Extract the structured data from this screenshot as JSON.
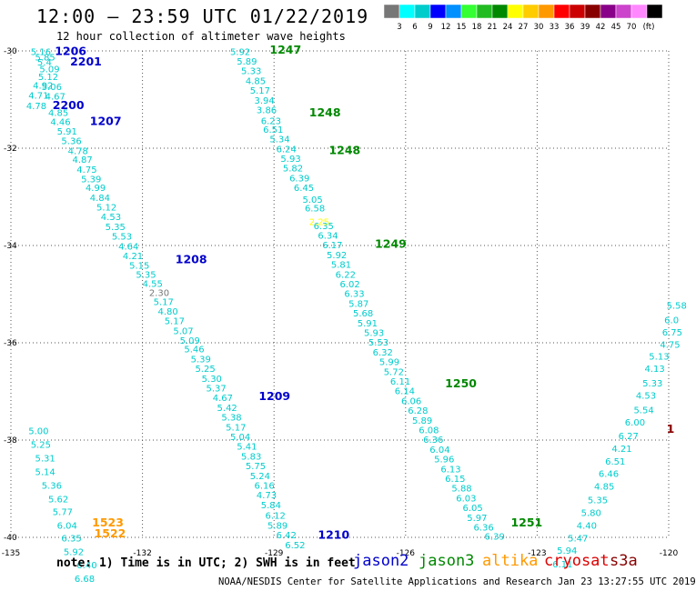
{
  "header": {
    "title": "12:00 – 23:59 UTC 01/22/2019",
    "subtitle": "12 hour collection of altimeter wave heights"
  },
  "colorbar": {
    "colors": [
      "#777777",
      "#00ffff",
      "#00cccc",
      "#0000ff",
      "#0090ff",
      "#33ff33",
      "#22bb22",
      "#008800",
      "#ffff00",
      "#ffcc00",
      "#ff9900",
      "#ff0000",
      "#cc0000",
      "#880000",
      "#880088",
      "#cc44cc",
      "#ff88ff",
      "#000000"
    ],
    "labels": [
      "3",
      "6",
      "9",
      "12",
      "15",
      "18",
      "21",
      "24",
      "27",
      "30",
      "33",
      "36",
      "39",
      "42",
      "45",
      "70"
    ],
    "unit": "(ft)"
  },
  "footer": {
    "note": "note: 1) Time is in UTC; 2) SWH is in feet",
    "credit": "NOAA/NESDIS Center for Satellite Applications and Research   Jan 23 13:27:55 UTC 2019",
    "satellites": [
      {
        "name": "jason2",
        "color": "#0000cc"
      },
      {
        "name": "jason3",
        "color": "#008800"
      },
      {
        "name": "altika",
        "color": "#ff9900"
      },
      {
        "name": "cryosat",
        "color": "#dd0000"
      },
      {
        "name": "s3a",
        "color": "#880000"
      }
    ]
  },
  "chart_data": {
    "type": "scatter",
    "xlim": [
      -135,
      -120
    ],
    "ylim": [
      -40,
      -30
    ],
    "x_ticks": [
      "-135",
      "-132",
      "-129",
      "-126",
      "-123",
      "-120"
    ],
    "y_ticks": [
      "-30",
      "-32",
      "-34",
      "-36",
      "-38",
      "-40"
    ],
    "grid": true,
    "tracks": [
      {
        "satellite": "jason2",
        "color": "#00cccc",
        "points": [
          {
            "lon": -134.55,
            "lat": -30.08,
            "v": "5.16"
          },
          {
            "lon": -134.45,
            "lat": -30.2,
            "v": "5.85"
          },
          {
            "lon": -134.4,
            "lat": -30.3,
            "v": "5.4"
          },
          {
            "lon": -134.35,
            "lat": -30.44,
            "v": "5.09"
          },
          {
            "lon": -134.38,
            "lat": -30.6,
            "v": "5.12"
          },
          {
            "lon": -134.5,
            "lat": -30.78,
            "v": "4.92"
          },
          {
            "lon": -134.3,
            "lat": -30.8,
            "v": "5.06"
          },
          {
            "lon": -134.6,
            "lat": -30.98,
            "v": "4.71"
          },
          {
            "lon": -134.22,
            "lat": -31.0,
            "v": "4.67"
          },
          {
            "lon": -134.65,
            "lat": -31.2,
            "v": "4.78"
          },
          {
            "lon": -134.15,
            "lat": -31.34,
            "v": "4.85"
          },
          {
            "lon": -134.1,
            "lat": -31.52,
            "v": "4.46"
          },
          {
            "lon": -133.95,
            "lat": -31.72,
            "v": "5.91"
          },
          {
            "lon": -133.85,
            "lat": -31.92,
            "v": "5.36"
          },
          {
            "lon": -133.7,
            "lat": -32.12,
            "v": "4.78"
          },
          {
            "lon": -133.6,
            "lat": -32.3,
            "v": "4.87"
          },
          {
            "lon": -133.5,
            "lat": -32.5,
            "v": "4.75"
          },
          {
            "lon": -133.4,
            "lat": -32.7,
            "v": "5.39"
          },
          {
            "lon": -133.3,
            "lat": -32.88,
            "v": "4.99"
          },
          {
            "lon": -133.2,
            "lat": -33.08,
            "v": "4.84"
          },
          {
            "lon": -133.05,
            "lat": -33.28,
            "v": "5.12"
          },
          {
            "lon": -132.95,
            "lat": -33.48,
            "v": "4.53"
          },
          {
            "lon": -132.85,
            "lat": -33.68,
            "v": "5.35"
          },
          {
            "lon": -132.7,
            "lat": -33.88,
            "v": "5.53"
          },
          {
            "lon": -132.55,
            "lat": -34.08,
            "v": "4.64"
          },
          {
            "lon": -132.45,
            "lat": -34.28,
            "v": "4.21"
          },
          {
            "lon": -132.3,
            "lat": -34.48,
            "v": "5.15"
          },
          {
            "lon": -132.15,
            "lat": -34.66,
            "v": "5.35"
          },
          {
            "lon": -132.0,
            "lat": -34.85,
            "v": "4.55"
          },
          {
            "lon": -131.85,
            "lat": -35.04,
            "v": "2.30",
            "color": "#777777"
          },
          {
            "lon": -131.75,
            "lat": -35.22,
            "v": "5.17"
          },
          {
            "lon": -131.65,
            "lat": -35.42,
            "v": "4.80"
          },
          {
            "lon": -131.5,
            "lat": -35.62,
            "v": "5.17"
          },
          {
            "lon": -131.3,
            "lat": -35.82,
            "v": "5.07"
          },
          {
            "lon": -131.15,
            "lat": -36.02,
            "v": "5.09"
          },
          {
            "lon": -131.05,
            "lat": -36.2,
            "v": "5.46"
          },
          {
            "lon": -130.9,
            "lat": -36.4,
            "v": "5.39"
          },
          {
            "lon": -130.8,
            "lat": -36.6,
            "v": "5.25"
          },
          {
            "lon": -130.65,
            "lat": -36.8,
            "v": "5.30"
          },
          {
            "lon": -130.55,
            "lat": -37.0,
            "v": "5.37"
          },
          {
            "lon": -130.4,
            "lat": -37.2,
            "v": "4.67"
          },
          {
            "lon": -130.3,
            "lat": -37.4,
            "v": "5.42"
          },
          {
            "lon": -130.2,
            "lat": -37.6,
            "v": "5.38"
          },
          {
            "lon": -130.1,
            "lat": -37.8,
            "v": "5.17"
          },
          {
            "lon": -130.0,
            "lat": -38.0,
            "v": "5.04"
          },
          {
            "lon": -129.85,
            "lat": -38.2,
            "v": "5.41"
          },
          {
            "lon": -129.75,
            "lat": -38.4,
            "v": "5.83"
          },
          {
            "lon": -129.65,
            "lat": -38.6,
            "v": "5.75"
          },
          {
            "lon": -129.55,
            "lat": -38.8,
            "v": "5.24"
          },
          {
            "lon": -129.45,
            "lat": -39.0,
            "v": "6.16"
          },
          {
            "lon": -129.4,
            "lat": -39.2,
            "v": "4.73"
          },
          {
            "lon": -129.3,
            "lat": -39.4,
            "v": "5.84"
          },
          {
            "lon": -129.2,
            "lat": -39.62,
            "v": "6.12"
          },
          {
            "lon": -129.15,
            "lat": -39.82,
            "v": "5.89"
          },
          {
            "lon": -128.95,
            "lat": -40.02,
            "v": "6.42"
          },
          {
            "lon": -128.75,
            "lat": -40.22,
            "v": "6.52"
          }
        ]
      },
      {
        "satellite": "jason2",
        "color": "#00cccc",
        "points": [
          {
            "lon": -134.6,
            "lat": -37.88,
            "v": "5.00"
          },
          {
            "lon": -134.55,
            "lat": -38.16,
            "v": "5.25"
          },
          {
            "lon": -134.45,
            "lat": -38.44,
            "v": "5.31"
          },
          {
            "lon": -134.45,
            "lat": -38.72,
            "v": "5.14"
          },
          {
            "lon": -134.3,
            "lat": -39.0,
            "v": "5.36"
          },
          {
            "lon": -134.15,
            "lat": -39.28,
            "v": "5.62"
          },
          {
            "lon": -134.05,
            "lat": -39.54,
            "v": "5.77"
          },
          {
            "lon": -133.95,
            "lat": -39.82,
            "v": "6.04"
          },
          {
            "lon": -133.85,
            "lat": -40.08,
            "v": "6.35"
          },
          {
            "lon": -133.8,
            "lat": -40.36,
            "v": "5.92"
          },
          {
            "lon": -133.5,
            "lat": -40.64,
            "v": "6.40"
          },
          {
            "lon": -133.55,
            "lat": -40.92,
            "v": "6.68"
          }
        ]
      },
      {
        "satellite": "jason3",
        "color": "#00cccc",
        "points": [
          {
            "lon": -130.0,
            "lat": -30.08,
            "v": "5.92"
          },
          {
            "lon": -129.85,
            "lat": -30.28,
            "v": "5.89"
          },
          {
            "lon": -129.75,
            "lat": -30.48,
            "v": "5.33"
          },
          {
            "lon": -129.65,
            "lat": -30.68,
            "v": "4.85"
          },
          {
            "lon": -129.55,
            "lat": -30.88,
            "v": "5.17"
          },
          {
            "lon": -129.45,
            "lat": -31.08,
            "v": "3.94"
          },
          {
            "lon": -129.4,
            "lat": -31.28,
            "v": "3.86"
          },
          {
            "lon": -129.3,
            "lat": -31.5,
            "v": "6.23"
          },
          {
            "lon": -129.25,
            "lat": -31.68,
            "v": "6.51"
          },
          {
            "lon": -129.1,
            "lat": -31.88,
            "v": "5.34"
          },
          {
            "lon": -128.95,
            "lat": -32.08,
            "v": "6.24"
          },
          {
            "lon": -128.85,
            "lat": -32.28,
            "v": "5.93"
          },
          {
            "lon": -128.8,
            "lat": -32.48,
            "v": "5.82"
          },
          {
            "lon": -128.65,
            "lat": -32.68,
            "v": "6.39"
          },
          {
            "lon": -128.55,
            "lat": -32.88,
            "v": "6.45"
          },
          {
            "lon": -128.35,
            "lat": -33.12,
            "v": "5.05"
          },
          {
            "lon": -128.3,
            "lat": -33.3,
            "v": "6.58"
          },
          {
            "lon": -128.1,
            "lat": -33.66,
            "v": "6.35"
          },
          {
            "lon": -128.0,
            "lat": -33.86,
            "v": "6.34"
          },
          {
            "lon": -127.9,
            "lat": -34.06,
            "v": "6.17"
          },
          {
            "lon": -127.8,
            "lat": -34.26,
            "v": "5.92"
          },
          {
            "lon": -127.7,
            "lat": -34.46,
            "v": "5.81"
          },
          {
            "lon": -127.6,
            "lat": -34.66,
            "v": "6.22"
          },
          {
            "lon": -127.5,
            "lat": -34.86,
            "v": "6.02"
          },
          {
            "lon": -127.4,
            "lat": -35.06,
            "v": "6.33"
          },
          {
            "lon": -127.3,
            "lat": -35.26,
            "v": "5.87"
          },
          {
            "lon": -127.2,
            "lat": -35.46,
            "v": "5.68"
          },
          {
            "lon": -127.1,
            "lat": -35.66,
            "v": "5.91"
          },
          {
            "lon": -126.95,
            "lat": -35.86,
            "v": "5.93"
          },
          {
            "lon": -126.85,
            "lat": -36.06,
            "v": "5.53"
          },
          {
            "lon": -126.75,
            "lat": -36.26,
            "v": "6.32"
          },
          {
            "lon": -126.6,
            "lat": -36.46,
            "v": "5.99"
          },
          {
            "lon": -126.5,
            "lat": -36.66,
            "v": "5.72"
          },
          {
            "lon": -126.35,
            "lat": -36.86,
            "v": "6.11"
          },
          {
            "lon": -126.25,
            "lat": -37.06,
            "v": "6.14"
          },
          {
            "lon": -126.1,
            "lat": -37.26,
            "v": "6.06"
          },
          {
            "lon": -125.95,
            "lat": -37.46,
            "v": "6.28"
          },
          {
            "lon": -125.85,
            "lat": -37.66,
            "v": "5.89"
          },
          {
            "lon": -125.7,
            "lat": -37.86,
            "v": "6.08"
          },
          {
            "lon": -125.6,
            "lat": -38.06,
            "v": "6.36"
          },
          {
            "lon": -125.45,
            "lat": -38.26,
            "v": "6.04"
          },
          {
            "lon": -125.35,
            "lat": -38.46,
            "v": "5.96"
          },
          {
            "lon": -125.2,
            "lat": -38.66,
            "v": "6.13"
          },
          {
            "lon": -125.1,
            "lat": -38.86,
            "v": "6.15"
          },
          {
            "lon": -124.95,
            "lat": -39.06,
            "v": "5.88"
          },
          {
            "lon": -124.85,
            "lat": -39.26,
            "v": "6.03"
          },
          {
            "lon": -124.7,
            "lat": -39.46,
            "v": "6.05"
          },
          {
            "lon": -124.6,
            "lat": -39.66,
            "v": "5.97"
          },
          {
            "lon": -124.45,
            "lat": -39.86,
            "v": "6.36"
          },
          {
            "lon": -124.2,
            "lat": -40.05,
            "v": "6.39"
          }
        ]
      },
      {
        "satellite": "altika",
        "color": "#00cccc",
        "points": [
          {
            "lon": -120.05,
            "lat": -35.3,
            "v": "5.58"
          },
          {
            "lon": -120.1,
            "lat": -35.6,
            "v": "6.0"
          },
          {
            "lon": -120.15,
            "lat": -35.85,
            "v": "6.75"
          },
          {
            "lon": -120.2,
            "lat": -36.1,
            "v": "4.75"
          },
          {
            "lon": -120.45,
            "lat": -36.35,
            "v": "5.13"
          },
          {
            "lon": -120.55,
            "lat": -36.6,
            "v": "4.13"
          },
          {
            "lon": -120.6,
            "lat": -36.9,
            "v": "5.33"
          },
          {
            "lon": -120.75,
            "lat": -37.15,
            "v": "4.53"
          },
          {
            "lon": -120.8,
            "lat": -37.45,
            "v": "5.54"
          },
          {
            "lon": -121.0,
            "lat": -37.7,
            "v": "6.00"
          },
          {
            "lon": -121.15,
            "lat": -37.98,
            "v": "6.27"
          },
          {
            "lon": -121.3,
            "lat": -38.24,
            "v": "4.21"
          },
          {
            "lon": -121.45,
            "lat": -38.5,
            "v": "6.51"
          },
          {
            "lon": -121.6,
            "lat": -38.76,
            "v": "6.46"
          },
          {
            "lon": -121.7,
            "lat": -39.02,
            "v": "4.85"
          },
          {
            "lon": -121.85,
            "lat": -39.3,
            "v": "5.35"
          },
          {
            "lon": -122.0,
            "lat": -39.56,
            "v": "5.80"
          },
          {
            "lon": -122.1,
            "lat": -39.82,
            "v": "4.40"
          },
          {
            "lon": -122.3,
            "lat": -40.08,
            "v": "5.47"
          },
          {
            "lon": -122.55,
            "lat": -40.34,
            "v": "5.94"
          },
          {
            "lon": -122.65,
            "lat": -40.62,
            "v": "6.11"
          }
        ]
      },
      {
        "satellite": "altika",
        "color": "#ffff00",
        "points": [
          {
            "lon": -128.2,
            "lat": -33.58,
            "v": "2.25"
          }
        ]
      }
    ],
    "time_labels": [
      {
        "lon": -134.0,
        "lat": -30.08,
        "text": "1206",
        "color": "#0000cc"
      },
      {
        "lon": -133.65,
        "lat": -30.3,
        "text": "2201",
        "color": "#0000cc"
      },
      {
        "lon": -134.05,
        "lat": -31.2,
        "text": "2200",
        "color": "#0000cc"
      },
      {
        "lon": -133.2,
        "lat": -31.52,
        "text": "1207",
        "color": "#0000cc"
      },
      {
        "lon": -131.25,
        "lat": -34.36,
        "text": "1208",
        "color": "#0000cc"
      },
      {
        "lon": -129.35,
        "lat": -37.18,
        "text": "1209",
        "color": "#0000cc"
      },
      {
        "lon": -128.0,
        "lat": -40.03,
        "text": "1210",
        "color": "#0000cc"
      },
      {
        "lon": -129.1,
        "lat": -30.06,
        "text": "1247",
        "color": "#008800"
      },
      {
        "lon": -128.2,
        "lat": -31.35,
        "text": "1248",
        "color": "#008800"
      },
      {
        "lon": -127.75,
        "lat": -32.12,
        "text": "1248",
        "color": "#008800"
      },
      {
        "lon": -126.7,
        "lat": -34.05,
        "text": "1249",
        "color": "#008800"
      },
      {
        "lon": -125.1,
        "lat": -36.92,
        "text": "1250",
        "color": "#008800"
      },
      {
        "lon": -123.6,
        "lat": -39.78,
        "text": "1251",
        "color": "#008800"
      },
      {
        "lon": -133.15,
        "lat": -39.78,
        "text": "1523",
        "color": "#ff9900"
      },
      {
        "lon": -133.1,
        "lat": -40.0,
        "text": "1522",
        "color": "#ff9900"
      },
      {
        "lon": -120.05,
        "lat": -37.85,
        "text": "1",
        "color": "#880000"
      }
    ]
  }
}
